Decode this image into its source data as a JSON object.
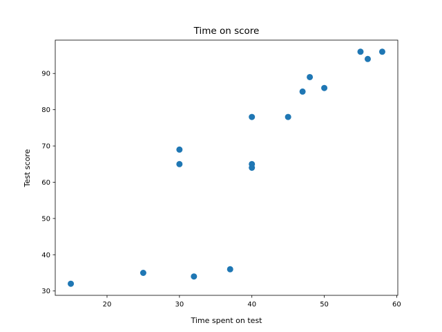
{
  "chart_data": {
    "type": "scatter",
    "title": "Time on score",
    "xlabel": "Time spent on test",
    "ylabel": "Test score",
    "xlim": [
      12.85,
      60.15
    ],
    "ylim": [
      28.8,
      99.2
    ],
    "xticks": [
      20,
      30,
      40,
      50,
      60
    ],
    "yticks": [
      30,
      40,
      50,
      60,
      70,
      80,
      90
    ],
    "grid": false,
    "point_color": "#1f77b4",
    "points": [
      {
        "x": 15,
        "y": 32
      },
      {
        "x": 25,
        "y": 35
      },
      {
        "x": 30,
        "y": 65
      },
      {
        "x": 30,
        "y": 69
      },
      {
        "x": 32,
        "y": 34
      },
      {
        "x": 37,
        "y": 36
      },
      {
        "x": 40,
        "y": 64
      },
      {
        "x": 40,
        "y": 65
      },
      {
        "x": 40,
        "y": 78
      },
      {
        "x": 45,
        "y": 78
      },
      {
        "x": 47,
        "y": 85
      },
      {
        "x": 48,
        "y": 89
      },
      {
        "x": 50,
        "y": 86
      },
      {
        "x": 55,
        "y": 96
      },
      {
        "x": 56,
        "y": 94
      },
      {
        "x": 58,
        "y": 96
      }
    ]
  }
}
